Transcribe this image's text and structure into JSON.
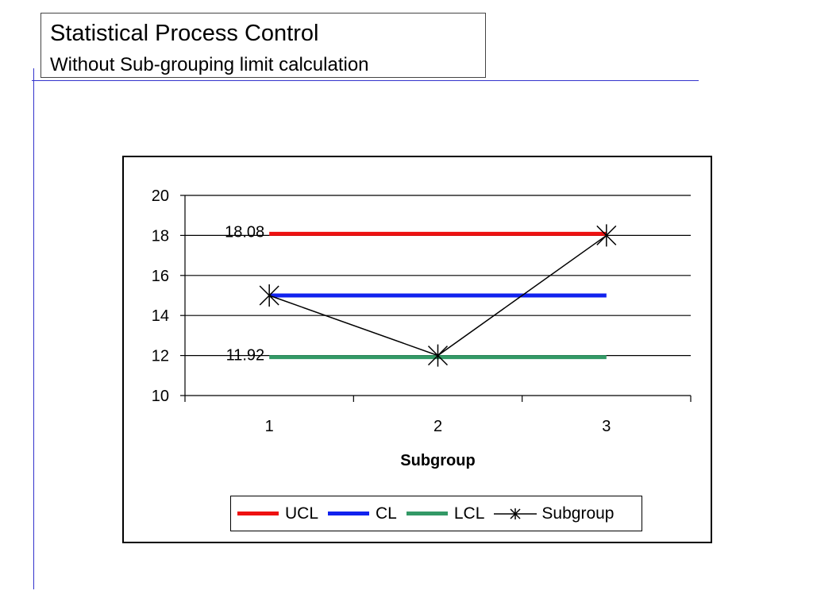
{
  "slide": {
    "title": "Statistical Process Control",
    "subtitle": "Without Sub-grouping limit calculation"
  },
  "chart_data": {
    "type": "line",
    "xlabel": "Subgroup",
    "ylabel": "",
    "categories": [
      "1",
      "2",
      "3"
    ],
    "ylim": [
      10,
      20
    ],
    "yticks": [
      "10",
      "12",
      "14",
      "16",
      "18",
      "20"
    ],
    "grid": true,
    "legend_position": "bottom",
    "series": [
      {
        "name": "UCL",
        "values": [
          18.08,
          18.08,
          18.08
        ],
        "color": "#ee1111",
        "marker": "none"
      },
      {
        "name": "CL",
        "values": [
          15,
          15,
          15
        ],
        "color": "#1122ee",
        "marker": "none"
      },
      {
        "name": "LCL",
        "values": [
          11.92,
          11.92,
          11.92
        ],
        "color": "#339966",
        "marker": "none"
      },
      {
        "name": "Subgroup",
        "values": [
          15,
          12,
          18
        ],
        "color": "#000000",
        "marker": "star"
      }
    ],
    "annotations": [
      {
        "text": "18.08",
        "series": "UCL"
      },
      {
        "text": "11.92",
        "series": "LCL"
      }
    ]
  }
}
